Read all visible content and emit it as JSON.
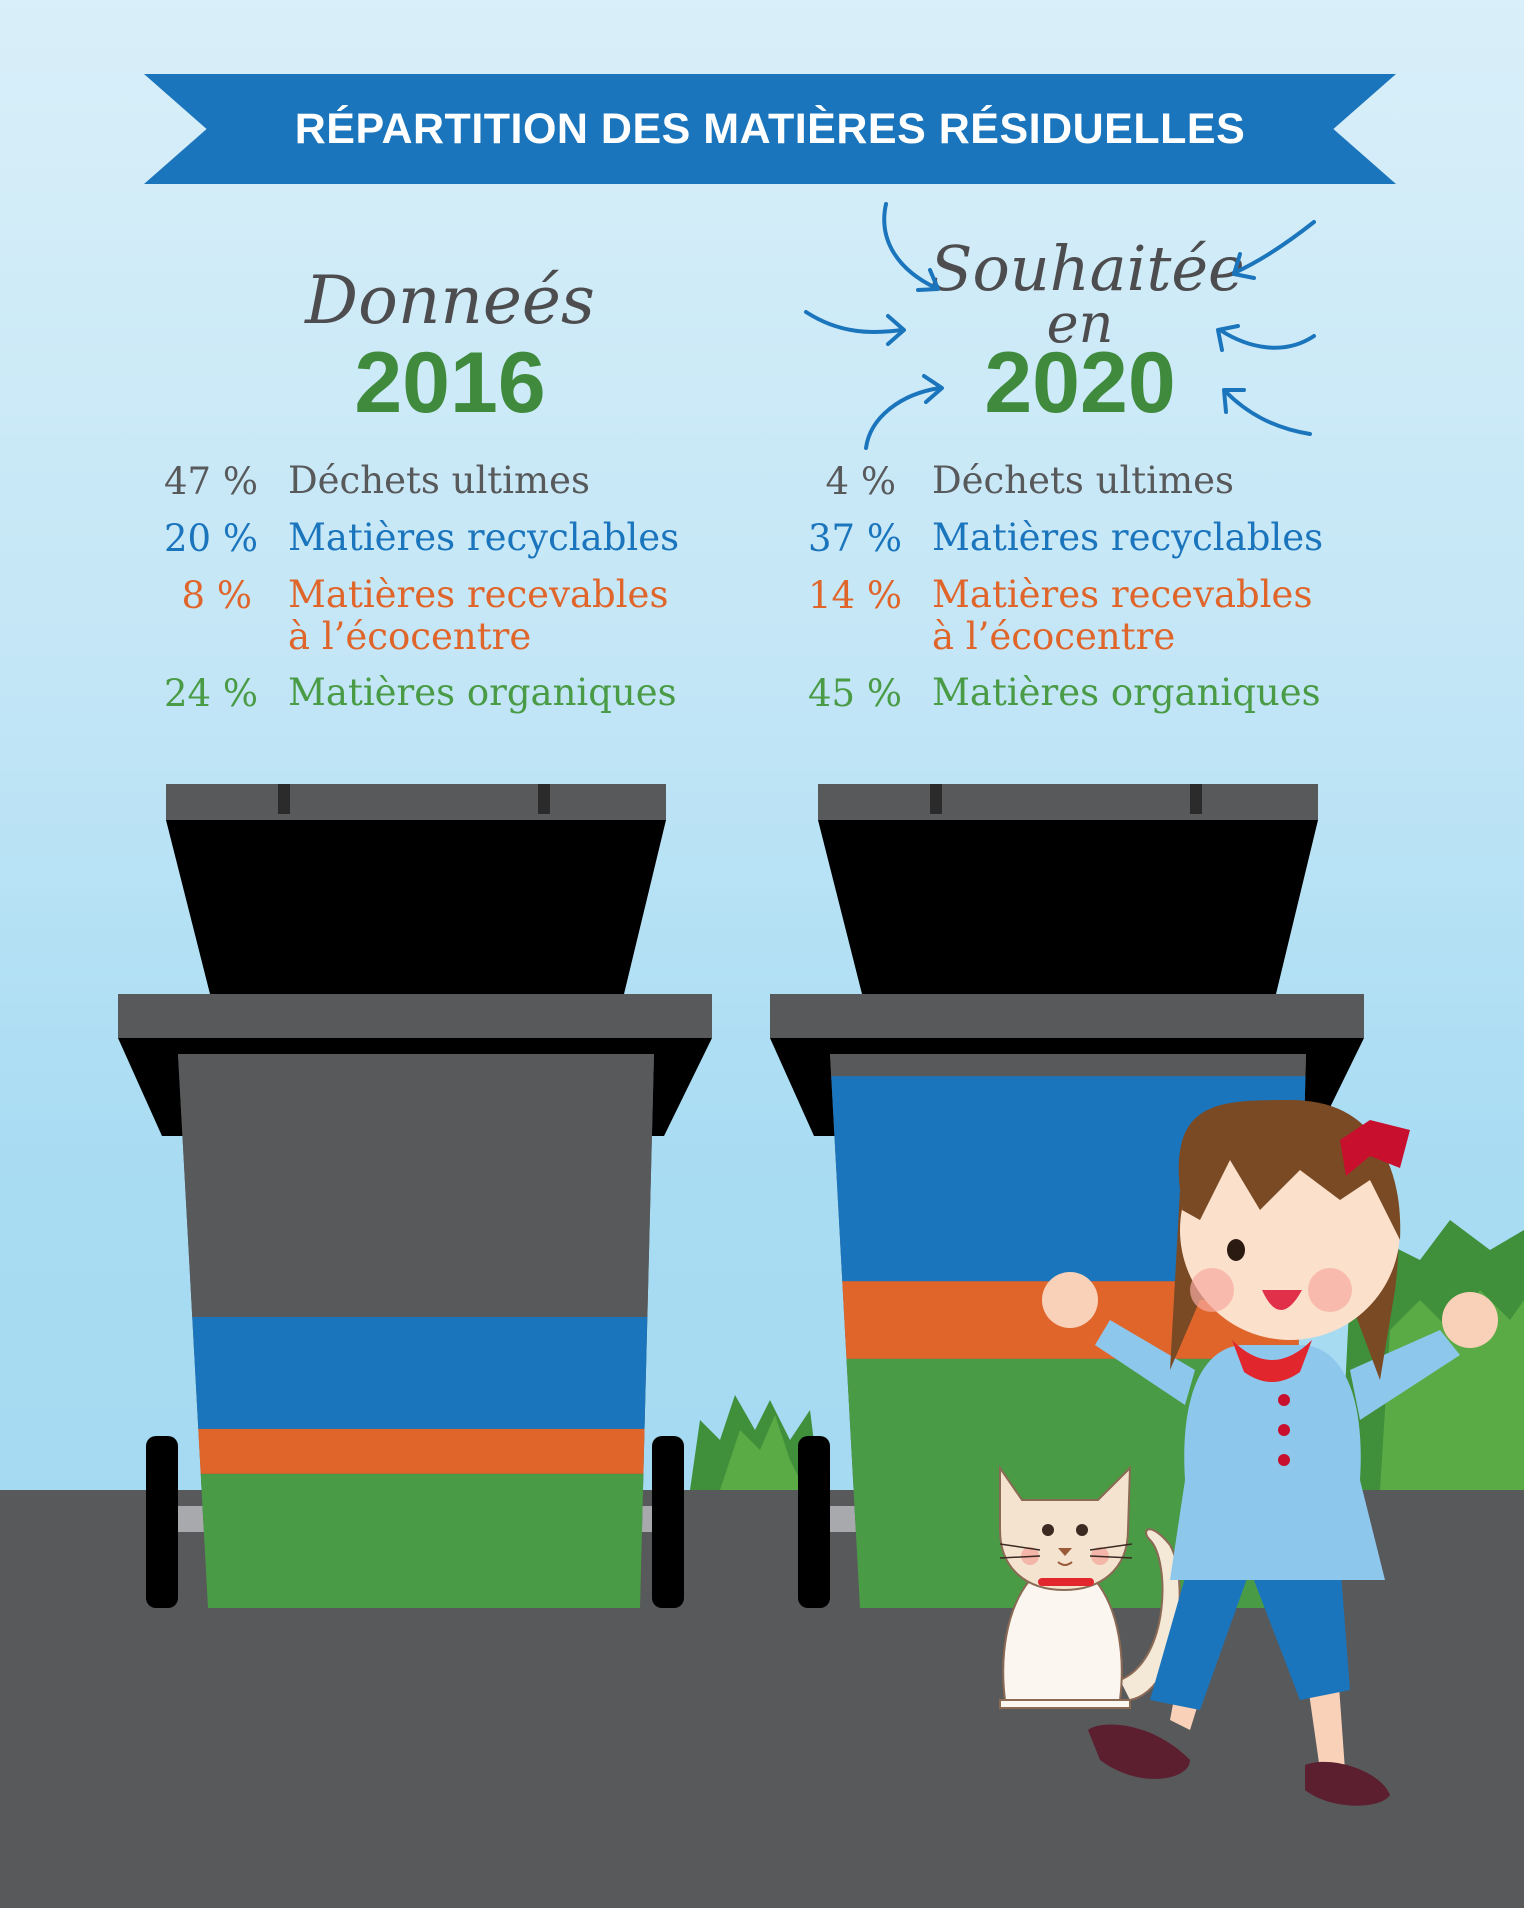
{
  "banner": {
    "title": "RÉPARTITION DES MATIÈRES RÉSIDUELLES"
  },
  "left": {
    "heading": "Donneés",
    "year": "2016",
    "items": [
      {
        "pct": "47 %",
        "label": "Déchets ultimes",
        "color": "#58595b"
      },
      {
        "pct": "20 %",
        "label": "Matières recyclables",
        "color": "#1b75bc"
      },
      {
        "pct": "8 %",
        "label": "Matières recevables",
        "label2": "à l’écocentre",
        "color": "#e0652b"
      },
      {
        "pct": "24 %",
        "label": "Matières organiques",
        "color": "#4a9b46"
      }
    ],
    "bin_fill": {
      "ultimes": 47,
      "recyclables": 20,
      "ecocentre": 8,
      "organiques": 24
    }
  },
  "right": {
    "heading_line1": "Souhaitée",
    "heading_line2": "en",
    "year": "2020",
    "items": [
      {
        "pct": "4 %",
        "label": "Déchets ultimes",
        "color": "#58595b"
      },
      {
        "pct": "37 %",
        "label": "Matières recyclables",
        "color": "#1b75bc"
      },
      {
        "pct": "14 %",
        "label": "Matières recevables",
        "label2": "à l’écocentre",
        "color": "#e0652b"
      },
      {
        "pct": "45 %",
        "label": "Matières organiques",
        "color": "#4a9b46"
      }
    ],
    "bin_fill": {
      "ultimes": 4,
      "recyclables": 37,
      "ecocentre": 14,
      "organiques": 45
    }
  },
  "colors": {
    "banner": "#1b75bc",
    "year": "#3f8a3c",
    "ultimes": "#58595b",
    "recyclables": "#1b75bc",
    "ecocentre": "#e0652b",
    "organiques": "#4a9b46"
  }
}
